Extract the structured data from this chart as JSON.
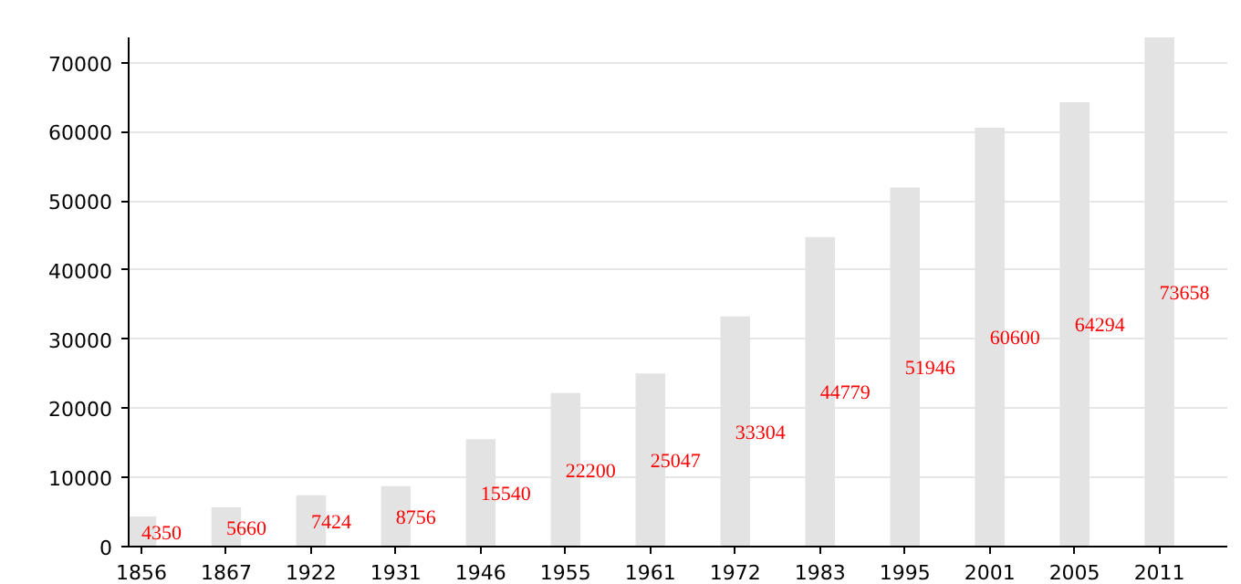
{
  "chart_data": {
    "type": "bar",
    "categories": [
      "1856",
      "1867",
      "1922",
      "1931",
      "1946",
      "1955",
      "1961",
      "1972",
      "1983",
      "1995",
      "2001",
      "2005",
      "2011"
    ],
    "values": [
      4350,
      5660,
      7424,
      8756,
      15540,
      22200,
      25047,
      33304,
      44779,
      51946,
      60600,
      64294,
      73658
    ],
    "color": "#e3e3e3",
    "data_labels": true,
    "ylim": [
      0,
      73658
    ],
    "yticks": [
      0,
      10000,
      20000,
      30000,
      40000,
      50000,
      60000,
      70000
    ],
    "grid": "y"
  }
}
